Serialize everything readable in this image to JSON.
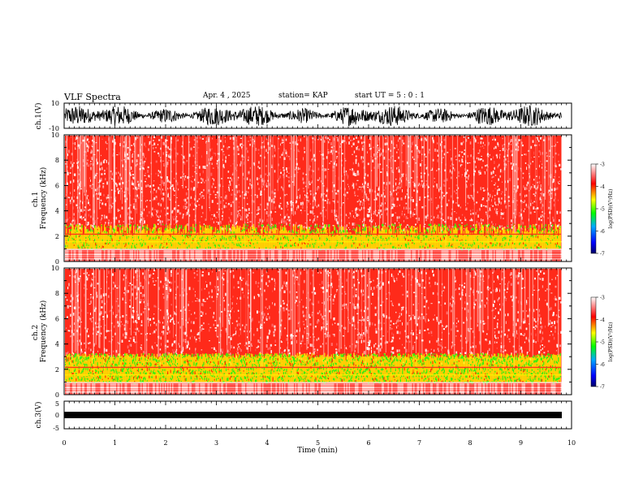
{
  "header": {
    "title": "VLF Spectra",
    "date": "Apr. 4 , 2025",
    "station": "station= KAP",
    "start": "start UT = 5 : 0 : 1"
  },
  "chart_data": [
    {
      "type": "line",
      "panel": "ch1-waveform",
      "ylabel": "ch.1(V)",
      "ylim": [
        -10,
        10
      ],
      "ytick_labels": [
        "10",
        "-10"
      ],
      "xlim": [
        0,
        10
      ]
    },
    {
      "type": "heatmap",
      "panel": "ch1-spectrogram",
      "ylabel": "ch.1\nFrequency (kHz)",
      "ylim": [
        0,
        10
      ],
      "ytick_labels": [
        "0",
        "2",
        "4",
        "6",
        "8",
        "10"
      ],
      "xlim": [
        0,
        10
      ],
      "data_end_min": 9.8,
      "colorbar": {
        "label": "log(PSD)(V²/Hz)",
        "range": [
          -7,
          -3
        ],
        "tick_labels": [
          "-3",
          "-4",
          "-5",
          "-6",
          "-7"
        ]
      }
    },
    {
      "type": "heatmap",
      "panel": "ch2-spectrogram",
      "ylabel": "ch.2\nFrequency (kHz)",
      "ylim": [
        0,
        10
      ],
      "ytick_labels": [
        "0",
        "2",
        "4",
        "6",
        "8",
        "10"
      ],
      "xlim": [
        0,
        10
      ],
      "data_end_min": 9.8,
      "colorbar": {
        "label": "log(PSD)(V²/Hz)",
        "range": [
          -7,
          -3
        ],
        "tick_labels": [
          "-3",
          "-4",
          "-5",
          "-6",
          "-7"
        ]
      }
    },
    {
      "type": "line",
      "panel": "ch3-waveform",
      "ylabel": "ch.3(V)",
      "ylim": [
        -5,
        5
      ],
      "ytick_labels": [
        "5",
        "0",
        "-5"
      ],
      "xlim": [
        0,
        10
      ]
    }
  ],
  "xaxis": {
    "label": "Time (min)",
    "tick_labels": [
      "0",
      "1",
      "2",
      "3",
      "4",
      "5",
      "6",
      "7",
      "8",
      "9",
      "10"
    ]
  },
  "colors": {
    "colormap": [
      "#000066",
      "#0000ff",
      "#00aaff",
      "#00ff00",
      "#ffff00",
      "#ff0000",
      "#ffffff"
    ]
  }
}
